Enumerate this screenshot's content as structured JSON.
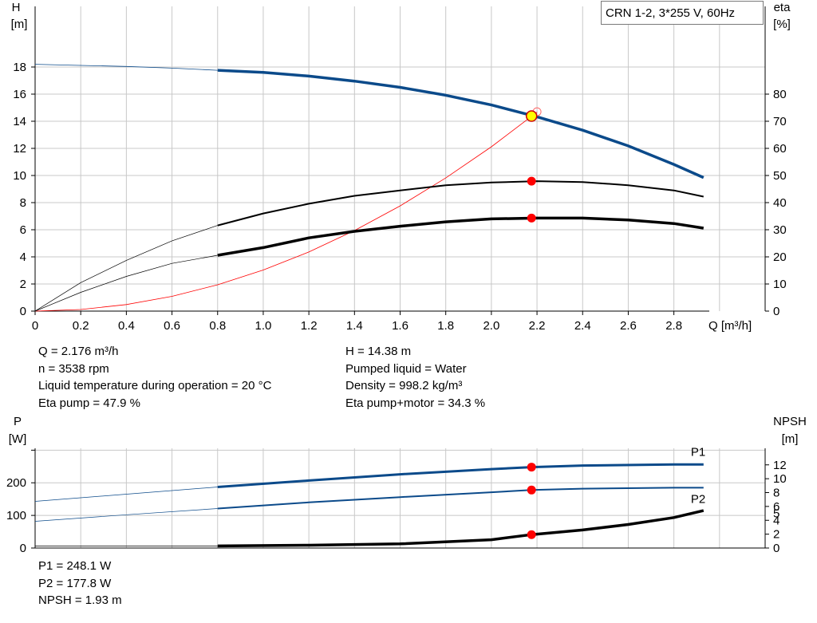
{
  "legend_title": "CRN 1-2, 3*255 V, 60Hz",
  "info_top_left": [
    "Q = 2.176 m³/h",
    "n = 3538 rpm",
    "Liquid temperature during operation = 20 °C",
    "Eta pump = 47.9 %"
  ],
  "info_top_right": [
    "H = 14.38 m",
    "Pumped liquid = Water",
    "Density = 998.2 kg/m³",
    "Eta pump+motor = 34.3 %"
  ],
  "info_bottom": [
    "P1 = 248.1 W",
    "P2 = 177.8 W",
    "NPSH = 1.93 m"
  ],
  "chart_data": [
    {
      "type": "line",
      "x_ticks": [
        "0",
        "0.2",
        "0.4",
        "0.6",
        "0.8",
        "1.0",
        "1.2",
        "1.4",
        "1.6",
        "1.8",
        "2.0",
        "2.2",
        "2.4",
        "2.6",
        "2.8"
      ],
      "y_ticks": [
        "0",
        "2",
        "4",
        "6",
        "8",
        "10",
        "12",
        "14",
        "16",
        "18"
      ],
      "y2_ticks": [
        "0",
        "10",
        "20",
        "30",
        "40",
        "50",
        "60",
        "70",
        "80"
      ],
      "xlim": [
        0,
        3.2
      ],
      "ylim": [
        0,
        20
      ],
      "y2lim": [
        0,
        100
      ],
      "ylabel_line1": "H",
      "ylabel_line2": "[m]",
      "y2label_line1": "eta",
      "y2label_line2": "[%]",
      "xlabel": "Q [m³/h]",
      "colors": {
        "H": "#0b4a8a",
        "eta": "#000000",
        "system": "#ff0000",
        "grid": "#c8c8c8"
      },
      "series": [
        {
          "axis": "H",
          "x": [
            0,
            0.2,
            0.4,
            0.6,
            0.8,
            1.0,
            1.2,
            1.4,
            1.6,
            1.8,
            2.0,
            2.2,
            2.4,
            2.6,
            2.8,
            2.93
          ],
          "values": [
            18.2,
            18.12,
            18.04,
            17.92,
            17.76,
            17.6,
            17.33,
            16.96,
            16.5,
            15.92,
            15.2,
            14.33,
            13.34,
            12.18,
            10.82,
            9.85
          ]
        },
        {
          "axis": "eta",
          "x": [
            0,
            0.2,
            0.4,
            0.6,
            0.8,
            1.0,
            1.2,
            1.4,
            1.6,
            1.8,
            2.0,
            2.2,
            2.4,
            2.6,
            2.8,
            2.93
          ],
          "values": [
            0,
            10.5,
            18.7,
            25.9,
            31.6,
            36.0,
            39.6,
            42.5,
            44.5,
            46.4,
            47.4,
            47.9,
            47.6,
            46.4,
            44.5,
            42.2
          ]
        },
        {
          "axis": "eta",
          "x": [
            0,
            0.2,
            0.4,
            0.6,
            0.8,
            1.0,
            1.2,
            1.4,
            1.6,
            1.8,
            2.0,
            2.2,
            2.4,
            2.6,
            2.8,
            2.93
          ],
          "values": [
            0,
            6.9,
            12.8,
            17.6,
            20.6,
            23.4,
            27.0,
            29.4,
            31.3,
            32.9,
            34.0,
            34.3,
            34.3,
            33.6,
            32.3,
            30.6
          ]
        },
        {
          "axis": "H",
          "x": [
            0,
            0.2,
            0.4,
            0.6,
            0.8,
            1.0,
            1.2,
            1.4,
            1.6,
            1.8,
            2.0,
            2.2
          ],
          "values": [
            0,
            0.12,
            0.48,
            1.09,
            1.94,
            3.03,
            4.36,
            5.94,
            7.76,
            9.82,
            12.12,
            14.67
          ]
        }
      ],
      "solid_from_x": 0.8,
      "duty_point": {
        "x": 2.176,
        "H": 14.38,
        "eta_pump": 47.9,
        "eta_pump_motor": 34.3
      }
    },
    {
      "type": "line",
      "y_ticks": [
        "0",
        "100",
        "200"
      ],
      "y2_ticks": [
        "0",
        "2",
        "4",
        "6",
        "8",
        "10",
        "12"
      ],
      "y2_extra_ticks": [
        "5"
      ],
      "xlim": [
        0,
        3.2
      ],
      "ylim": [
        0,
        340
      ],
      "y2lim": [
        0,
        16
      ],
      "ylabel_line1": "P",
      "ylabel_line2": "[W]",
      "y2label_line1": "NPSH",
      "y2label_line2": "[m]",
      "colors": {
        "P": "#0b4a8a",
        "NPSH": "#000000"
      },
      "series": [
        {
          "name": "P1",
          "axis": "P",
          "x": [
            0,
            0.4,
            0.8,
            1.2,
            1.6,
            2.0,
            2.176,
            2.4,
            2.8,
            2.93
          ],
          "values": [
            143,
            165,
            187,
            207,
            226,
            242,
            248.1,
            253,
            256,
            256
          ]
        },
        {
          "name": "P2",
          "axis": "P",
          "x": [
            0,
            0.4,
            0.8,
            1.2,
            1.6,
            2.0,
            2.176,
            2.4,
            2.8,
            2.93
          ],
          "values": [
            82,
            102,
            121,
            140,
            156,
            171,
            177.8,
            182,
            185,
            185
          ]
        },
        {
          "axis": "NPSH",
          "x": [
            0,
            0.4,
            0.8,
            1.2,
            1.6,
            2.0,
            2.176,
            2.4,
            2.6,
            2.8,
            2.93
          ],
          "values": [
            0.3,
            0.3,
            0.3,
            0.4,
            0.6,
            1.2,
            1.93,
            2.6,
            3.4,
            4.4,
            5.4
          ]
        }
      ],
      "solid_from_x": 0.8,
      "duty_point": {
        "x": 2.176,
        "P1": 248.1,
        "P2": 177.8,
        "NPSH": 1.93
      }
    }
  ]
}
